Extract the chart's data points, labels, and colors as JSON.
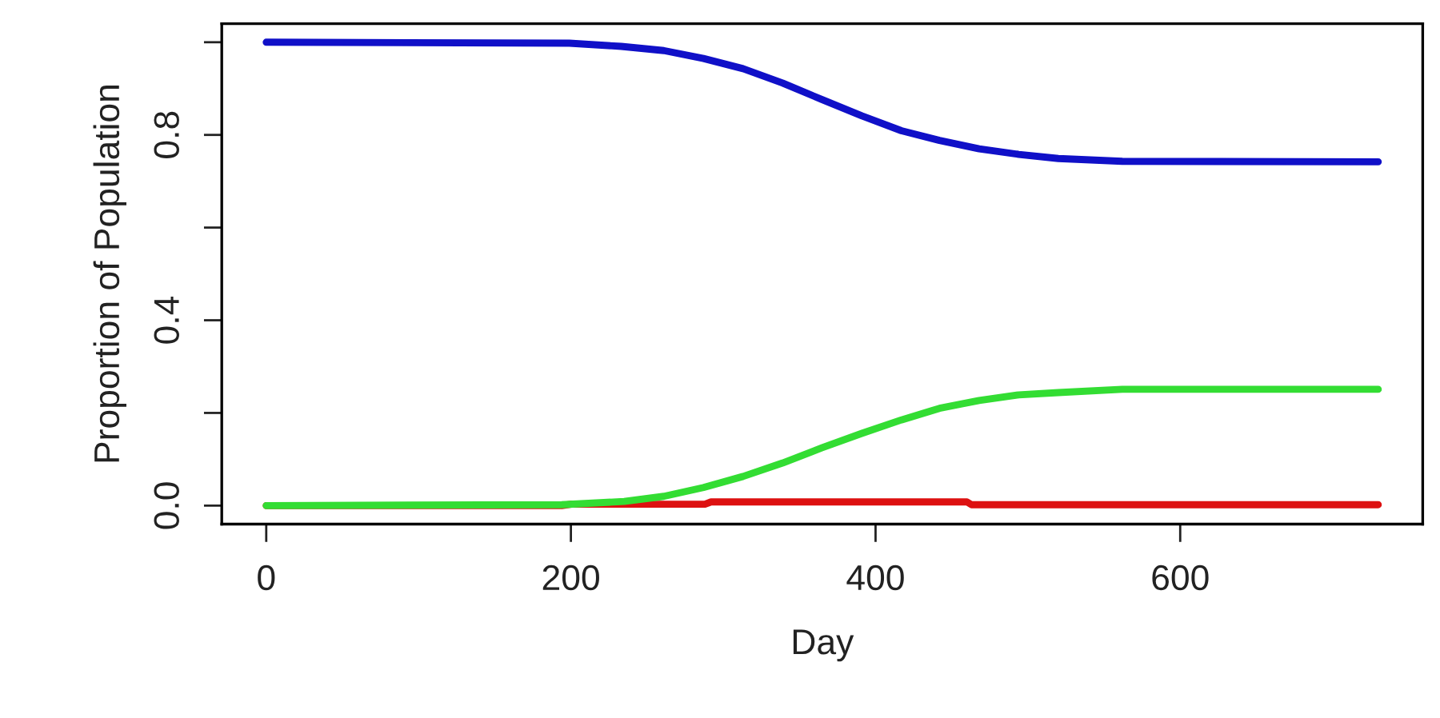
{
  "chart_data": {
    "type": "line",
    "xlabel": "Day",
    "ylabel": "Proportion of Population",
    "xlim": [
      -29.2,
      759.2
    ],
    "ylim": [
      -0.04,
      1.04
    ],
    "xticks": [
      0,
      200,
      400,
      600
    ],
    "yticks": [
      {
        "value": 0.0,
        "label": "0.0"
      },
      {
        "value": 0.2,
        "label": null
      },
      {
        "value": 0.4,
        "label": "0.4"
      },
      {
        "value": 0.6,
        "label": null
      },
      {
        "value": 0.8,
        "label": "0.8"
      },
      {
        "value": 1.0,
        "label": null
      }
    ],
    "series": [
      {
        "color": "#1010c8",
        "x": [
          0,
          199,
          233,
          261,
          287,
          313,
          339,
          365,
          391,
          417,
          442,
          468,
          494,
          520,
          562,
          730
        ],
        "values": [
          1.0,
          0.998,
          0.991,
          0.982,
          0.965,
          0.943,
          0.912,
          0.876,
          0.841,
          0.809,
          0.788,
          0.77,
          0.758,
          0.749,
          0.743,
          0.742
        ]
      },
      {
        "color": "#dd1111",
        "x": [
          0,
          194,
          200,
          288,
          292,
          460,
          463,
          730
        ],
        "values": [
          0,
          0,
          0.003,
          0.003,
          0.008,
          0.008,
          0.002,
          0.002
        ]
      },
      {
        "color": "#33dd33",
        "x": [
          0,
          194,
          235,
          261,
          287,
          313,
          339,
          365,
          391,
          417,
          442,
          468,
          494,
          520,
          562,
          730
        ],
        "values": [
          0,
          0.002,
          0.009,
          0.02,
          0.039,
          0.063,
          0.092,
          0.125,
          0.156,
          0.185,
          0.21,
          0.227,
          0.239,
          0.244,
          0.251,
          0.251
        ]
      }
    ]
  }
}
